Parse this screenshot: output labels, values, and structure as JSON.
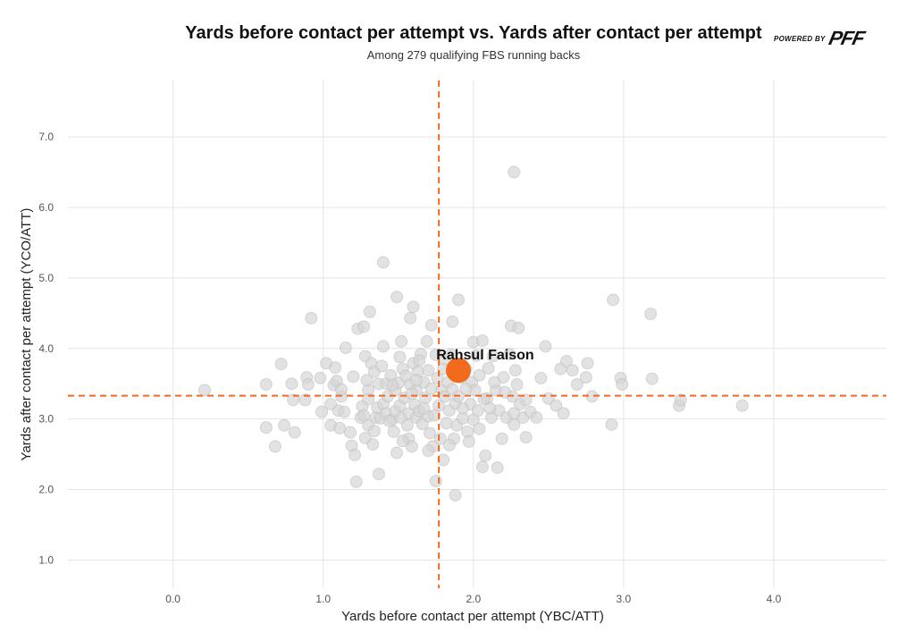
{
  "header": {
    "title": "Yards before contact per attempt vs. Yards after contact per attempt",
    "subtitle": "Among 279 qualifying FBS running backs",
    "logo_powered": "POWERED BY",
    "logo_brand": "PFF"
  },
  "colors": {
    "accent": "#f26a1b",
    "points": "#d6d6d6",
    "points_stroke": "#bfbfbf",
    "grid": "#e4e4e4"
  },
  "chart_data": {
    "type": "scatter",
    "title": "Yards before contact per attempt vs. Yards after contact per attempt",
    "subtitle": "Among 279 qualifying FBS running backs",
    "xlabel": "Yards before contact per attempt (YBC/ATT)",
    "ylabel": "Yards after contact per attempt (YCO/ATT)",
    "xlim": [
      -0.7,
      4.75
    ],
    "ylim": [
      0.6,
      7.8
    ],
    "xticks": [
      0.0,
      1.0,
      2.0,
      3.0,
      4.0
    ],
    "xtick_labels": [
      "0.0",
      "1.0",
      "2.0",
      "3.0",
      "4.0"
    ],
    "yticks": [
      1.0,
      2.0,
      3.0,
      4.0,
      5.0,
      6.0,
      7.0
    ],
    "ytick_labels": [
      "1.0",
      "2.0",
      "3.0",
      "4.0",
      "5.0",
      "6.0",
      "7.0"
    ],
    "grid": true,
    "reference_lines": {
      "x": 1.77,
      "y": 3.33
    },
    "highlight": {
      "name": "Rahsul Faison",
      "x": 1.9,
      "y": 3.69
    },
    "points": [
      [
        0.21,
        3.41
      ],
      [
        0.62,
        3.49
      ],
      [
        0.62,
        2.88
      ],
      [
        0.68,
        2.61
      ],
      [
        0.72,
        3.78
      ],
      [
        0.74,
        2.91
      ],
      [
        0.79,
        3.5
      ],
      [
        0.8,
        3.27
      ],
      [
        0.81,
        2.81
      ],
      [
        0.88,
        3.27
      ],
      [
        0.89,
        3.59
      ],
      [
        0.9,
        3.49
      ],
      [
        0.92,
        4.43
      ],
      [
        0.98,
        3.58
      ],
      [
        0.99,
        3.1
      ],
      [
        1.02,
        3.79
      ],
      [
        1.05,
        2.91
      ],
      [
        1.07,
        3.48
      ],
      [
        1.08,
        3.73
      ],
      [
        1.09,
        3.54
      ],
      [
        1.1,
        3.12
      ],
      [
        1.11,
        2.87
      ],
      [
        1.12,
        3.32
      ],
      [
        1.14,
        3.1
      ],
      [
        1.15,
        4.01
      ],
      [
        1.18,
        2.81
      ],
      [
        1.19,
        2.62
      ],
      [
        1.2,
        3.6
      ],
      [
        1.21,
        2.49
      ],
      [
        1.22,
        2.11
      ],
      [
        1.23,
        4.28
      ],
      [
        1.25,
        3.02
      ],
      [
        1.26,
        3.18
      ],
      [
        1.27,
        4.31
      ],
      [
        1.28,
        3.89
      ],
      [
        1.28,
        2.73
      ],
      [
        1.3,
        2.91
      ],
      [
        1.3,
        3.41
      ],
      [
        1.3,
        3.28
      ],
      [
        1.31,
        4.52
      ],
      [
        1.32,
        3.79
      ],
      [
        1.33,
        2.64
      ],
      [
        1.34,
        3.67
      ],
      [
        1.35,
        3.02
      ],
      [
        1.36,
        3.16
      ],
      [
        1.37,
        2.22
      ],
      [
        1.37,
        3.5
      ],
      [
        1.38,
        3.01
      ],
      [
        1.4,
        4.03
      ],
      [
        1.4,
        5.22
      ],
      [
        1.4,
        3.21
      ],
      [
        1.42,
        3.5
      ],
      [
        1.42,
        3.08
      ],
      [
        1.43,
        3.32
      ],
      [
        1.45,
        3.62
      ],
      [
        1.46,
        2.99
      ],
      [
        1.47,
        2.82
      ],
      [
        1.48,
        3.11
      ],
      [
        1.48,
        3.41
      ],
      [
        1.49,
        4.73
      ],
      [
        1.49,
        2.52
      ],
      [
        1.5,
        3.51
      ],
      [
        1.51,
        3.19
      ],
      [
        1.52,
        3.02
      ],
      [
        1.52,
        4.1
      ],
      [
        1.53,
        3.71
      ],
      [
        1.54,
        3.3
      ],
      [
        1.55,
        3.61
      ],
      [
        1.56,
        2.91
      ],
      [
        1.57,
        3.08
      ],
      [
        1.57,
        2.72
      ],
      [
        1.58,
        4.43
      ],
      [
        1.58,
        3.49
      ],
      [
        1.59,
        2.61
      ],
      [
        1.6,
        4.59
      ],
      [
        1.6,
        3.79
      ],
      [
        1.61,
        3.2
      ],
      [
        1.62,
        3.41
      ],
      [
        1.62,
        3.02
      ],
      [
        1.63,
        3.67
      ],
      [
        1.64,
        3.11
      ],
      [
        1.65,
        3.92
      ],
      [
        1.66,
        2.93
      ],
      [
        1.67,
        3.52
      ],
      [
        1.68,
        3.3
      ],
      [
        1.69,
        4.1
      ],
      [
        1.7,
        3.69
      ],
      [
        1.7,
        3.04
      ],
      [
        1.71,
        2.8
      ],
      [
        1.72,
        4.33
      ],
      [
        1.72,
        3.43
      ],
      [
        1.73,
        2.61
      ],
      [
        1.75,
        3.91
      ],
      [
        1.76,
        3.58
      ],
      [
        1.77,
        3.19
      ],
      [
        1.78,
        2.72
      ],
      [
        1.79,
        3.41
      ],
      [
        1.8,
        2.42
      ],
      [
        1.8,
        3.71
      ],
      [
        1.81,
        3.32
      ],
      [
        1.82,
        2.94
      ],
      [
        1.83,
        3.52
      ],
      [
        1.84,
        3.12
      ],
      [
        1.85,
        3.91
      ],
      [
        1.86,
        3.42
      ],
      [
        1.86,
        4.38
      ],
      [
        1.87,
        2.72
      ],
      [
        1.88,
        3.22
      ],
      [
        1.89,
        2.91
      ],
      [
        1.9,
        4.69
      ],
      [
        1.9,
        3.32
      ],
      [
        1.92,
        3.59
      ],
      [
        1.93,
        3.01
      ],
      [
        1.95,
        3.71
      ],
      [
        1.96,
        2.82
      ],
      [
        1.98,
        3.21
      ],
      [
        1.99,
        3.52
      ],
      [
        2.0,
        4.09
      ],
      [
        2.0,
        2.99
      ],
      [
        2.01,
        3.41
      ],
      [
        2.02,
        3.9
      ],
      [
        2.03,
        3.12
      ],
      [
        2.04,
        3.62
      ],
      [
        2.06,
        4.11
      ],
      [
        2.06,
        2.32
      ],
      [
        2.08,
        2.48
      ],
      [
        2.09,
        3.29
      ],
      [
        2.1,
        3.72
      ],
      [
        2.12,
        3.02
      ],
      [
        2.13,
        3.89
      ],
      [
        2.15,
        3.41
      ],
      [
        2.16,
        2.31
      ],
      [
        2.17,
        3.12
      ],
      [
        2.19,
        2.72
      ],
      [
        2.2,
        3.59
      ],
      [
        2.22,
        3.02
      ],
      [
        2.24,
        3.92
      ],
      [
        2.25,
        4.32
      ],
      [
        2.26,
        3.32
      ],
      [
        2.27,
        2.92
      ],
      [
        2.27,
        6.5
      ],
      [
        2.28,
        3.69
      ],
      [
        2.29,
        3.49
      ],
      [
        2.3,
        4.29
      ],
      [
        2.31,
        3.21
      ],
      [
        2.33,
        3.02
      ],
      [
        2.35,
        2.74
      ],
      [
        2.38,
        3.1
      ],
      [
        2.42,
        3.02
      ],
      [
        2.45,
        3.58
      ],
      [
        2.48,
        4.03
      ],
      [
        2.5,
        3.29
      ],
      [
        2.55,
        3.19
      ],
      [
        2.58,
        3.71
      ],
      [
        2.6,
        3.08
      ],
      [
        2.62,
        3.82
      ],
      [
        2.66,
        3.69
      ],
      [
        2.69,
        3.49
      ],
      [
        2.75,
        3.59
      ],
      [
        2.76,
        3.79
      ],
      [
        2.79,
        3.32
      ],
      [
        2.92,
        2.92
      ],
      [
        2.93,
        4.69
      ],
      [
        2.98,
        3.58
      ],
      [
        2.99,
        3.49
      ],
      [
        3.18,
        4.49
      ],
      [
        3.19,
        3.57
      ],
      [
        3.37,
        3.19
      ],
      [
        3.38,
        3.27
      ],
      [
        3.79,
        3.19
      ],
      [
        1.75,
        2.12
      ],
      [
        1.88,
        1.92
      ],
      [
        1.46,
        3.48
      ],
      [
        1.53,
        2.69
      ],
      [
        1.64,
        3.83
      ],
      [
        1.7,
        2.55
      ],
      [
        1.84,
        2.63
      ],
      [
        1.93,
        3.15
      ],
      [
        2.07,
        3.28
      ],
      [
        2.14,
        3.52
      ],
      [
        1.27,
        3.05
      ],
      [
        1.34,
        2.83
      ],
      [
        1.12,
        3.42
      ],
      [
        1.44,
        2.97
      ],
      [
        1.59,
        3.36
      ],
      [
        1.67,
        3.15
      ],
      [
        1.97,
        2.68
      ],
      [
        2.21,
        3.38
      ],
      [
        2.35,
        3.27
      ],
      [
        1.05,
        3.21
      ],
      [
        1.39,
        3.75
      ],
      [
        1.51,
        3.88
      ],
      [
        1.74,
        3.05
      ],
      [
        1.81,
        3.85
      ],
      [
        2.04,
        2.86
      ],
      [
        2.27,
        3.08
      ],
      [
        1.29,
        3.55
      ],
      [
        1.62,
        3.55
      ],
      [
        1.95,
        3.43
      ],
      [
        2.11,
        3.15
      ]
    ]
  }
}
